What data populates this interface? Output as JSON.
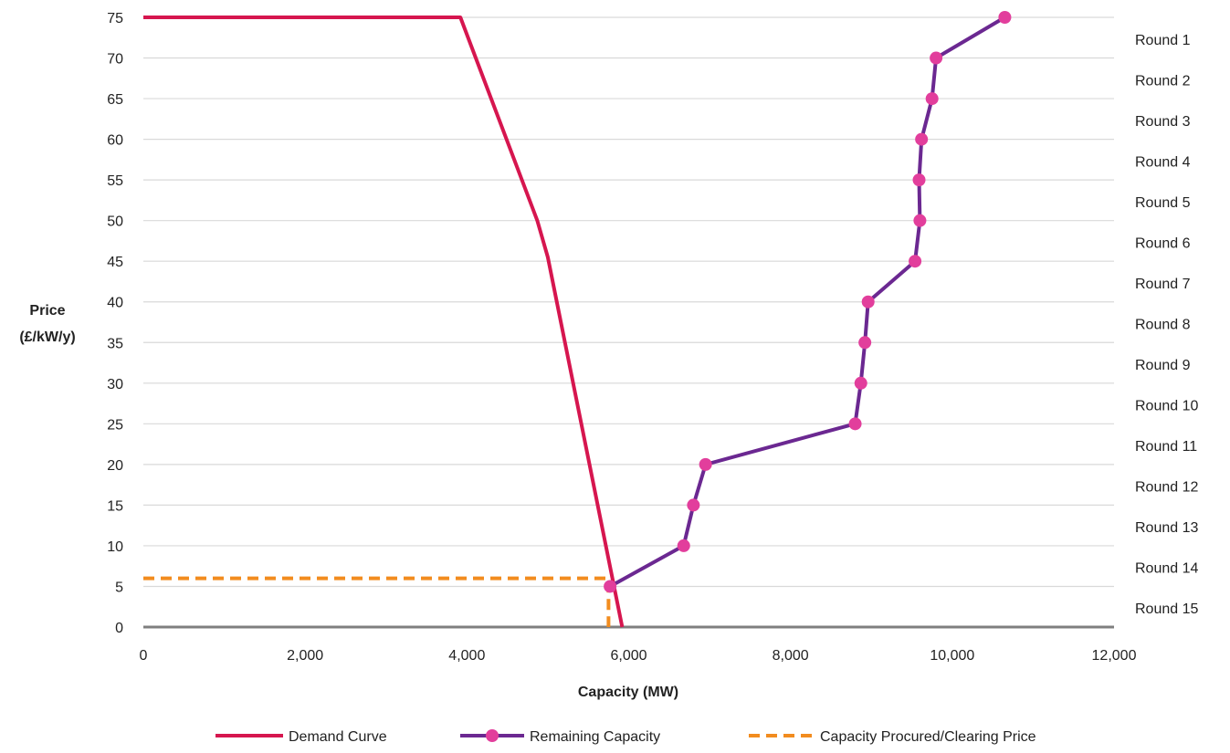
{
  "chart_data": {
    "type": "line",
    "xlabel": "Capacity (MW)",
    "ylabel_lines": [
      "Price",
      "(£/kW/y)"
    ],
    "xlim": [
      0,
      12000
    ],
    "ylim": [
      0,
      75
    ],
    "x_ticks": [
      0,
      2000,
      4000,
      6000,
      8000,
      10000,
      12000
    ],
    "x_tick_labels": [
      "0",
      "2,000",
      "4,000",
      "6,000",
      "8,000",
      "10,000",
      "12,000"
    ],
    "y_ticks": [
      0,
      5,
      10,
      15,
      20,
      25,
      30,
      35,
      40,
      45,
      50,
      55,
      60,
      65,
      70,
      75
    ],
    "y_tick_labels": [
      "0",
      "5",
      "10",
      "15",
      "20",
      "25",
      "30",
      "35",
      "40",
      "45",
      "50",
      "55",
      "60",
      "65",
      "70",
      "75"
    ],
    "grid": true,
    "legend_position": "bottom",
    "round_labels": [
      "Round 1",
      "Round 2",
      "Round 3",
      "Round 4",
      "Round 5",
      "Round 6",
      "Round 7",
      "Round 8",
      "Round 9",
      "Round 10",
      "Round 11",
      "Round 12",
      "Round 13",
      "Round 14",
      "Round 15"
    ],
    "series": [
      {
        "name": "Demand Curve",
        "color": "#d6164f",
        "style": "solid",
        "markers": false,
        "points": [
          [
            0,
            75
          ],
          [
            3920,
            75
          ],
          [
            4870,
            50
          ],
          [
            5000,
            45.5
          ],
          [
            5920,
            0
          ]
        ]
      },
      {
        "name": "Remaining Capacity",
        "color": "#6b2891",
        "marker_color": "#e23e9c",
        "style": "solid",
        "markers": true,
        "points": [
          [
            10650,
            75
          ],
          [
            9800,
            70
          ],
          [
            9750,
            65
          ],
          [
            9620,
            60
          ],
          [
            9590,
            55
          ],
          [
            9600,
            50
          ],
          [
            9540,
            45
          ],
          [
            8960,
            40
          ],
          [
            8920,
            35
          ],
          [
            8870,
            30
          ],
          [
            8800,
            25
          ],
          [
            6950,
            20
          ],
          [
            6800,
            15
          ],
          [
            6680,
            10
          ],
          [
            5770,
            5
          ]
        ]
      },
      {
        "name": "Capacity Procured/Clearing Price",
        "color": "#f28c1f",
        "style": "dashed",
        "markers": false,
        "points": [
          [
            0,
            6
          ],
          [
            5750,
            6
          ],
          [
            5750,
            0
          ]
        ]
      }
    ]
  }
}
